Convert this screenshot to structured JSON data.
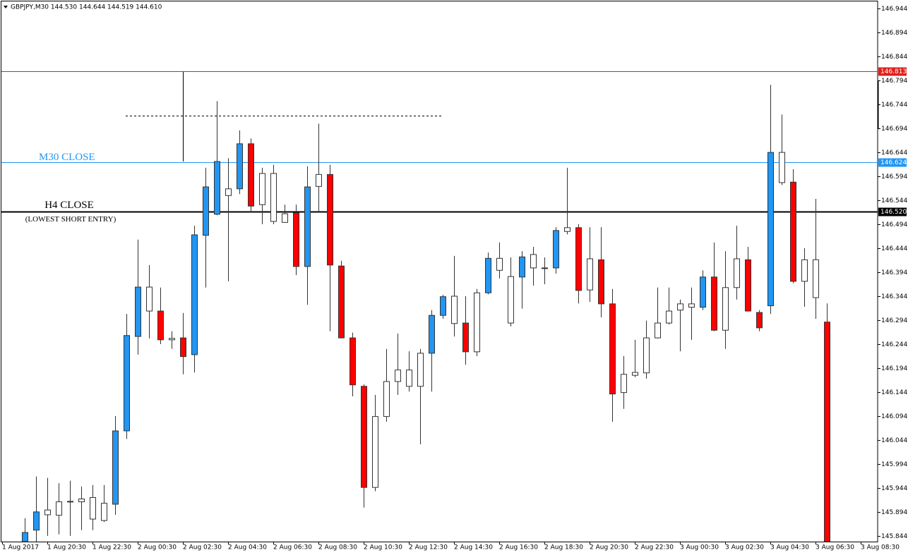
{
  "chart_data": {
    "type": "candlestick",
    "header": "GBPJPY,M30  144.530 144.644 144.519 144.610",
    "categories": [
      "1 Aug 2017",
      null,
      null,
      null,
      "1 Aug 20:30",
      null,
      null,
      null,
      "1 Aug 22:30",
      null,
      null,
      null,
      "2 Aug 00:30",
      null,
      null,
      null,
      "2 Aug 02:30",
      null,
      null,
      null,
      "2 Aug 04:30",
      null,
      null,
      null,
      "2 Aug 06:30",
      null,
      null,
      null,
      "2 Aug 08:30",
      null,
      null,
      null,
      "2 Aug 10:30",
      null,
      null,
      null,
      "2 Aug 12:30",
      null,
      null,
      null,
      "2 Aug 14:30",
      null,
      null,
      null,
      "2 Aug 16:30",
      null,
      null,
      null,
      "2 Aug 18:30",
      null,
      null,
      null,
      "2 Aug 20:30",
      null,
      null,
      null,
      "2 Aug 22:30",
      null,
      null,
      null,
      "3 Aug 00:30",
      null,
      null,
      null,
      "3 Aug 02:30",
      null,
      null,
      null,
      "3 Aug 04:30",
      null,
      null,
      null,
      "3 Aug 06:30",
      null,
      null,
      null,
      "3 Aug 08:30"
    ],
    "open": [
      null,
      null,
      145.832,
      145.856,
      145.888,
      145.887,
      145.916,
      145.915,
      145.924,
      145.876,
      145.91,
      146.063,
      146.26,
      146.363,
      146.313,
      146.253,
      146.257,
      146.222,
      146.471,
      146.515,
      146.554,
      146.568,
      146.662,
      146.535,
      146.6,
      146.498,
      146.518,
      146.406,
      146.573,
      146.598,
      146.407,
      146.257,
      146.156,
      145.945,
      146.093,
      146.166,
      146.19,
      146.156,
      146.225,
      146.304,
      146.344,
      146.288,
      146.228,
      146.351,
      146.398,
      146.385,
      146.384,
      146.431,
      146.403,
      146.403,
      146.479,
      146.487,
      146.357,
      146.42,
      146.328,
      146.143,
      146.179,
      146.184,
      146.257,
      146.288,
      146.315,
      146.321,
      146.321,
      146.384,
      146.273,
      146.362,
      146.42,
      146.31,
      146.324,
      146.644,
      146.582,
      146.375,
      146.42,
      146.29,
      null,
      null,
      null
    ],
    "high": [
      null,
      null,
      145.881,
      145.968,
      145.965,
      145.954,
      145.959,
      145.947,
      145.95,
      145.95,
      146.094,
      146.307,
      146.462,
      146.409,
      146.362,
      146.271,
      146.309,
      146.491,
      146.612,
      146.751,
      146.632,
      146.69,
      146.673,
      146.612,
      146.618,
      146.535,
      146.535,
      146.615,
      146.704,
      146.618,
      146.418,
      146.268,
      146.16,
      146.138,
      146.234,
      146.266,
      146.229,
      146.234,
      146.315,
      146.347,
      146.428,
      146.344,
      146.359,
      146.435,
      146.456,
      146.425,
      146.438,
      146.447,
      146.425,
      146.488,
      146.612,
      146.494,
      146.488,
      146.488,
      146.359,
      146.219,
      146.253,
      146.293,
      146.362,
      146.362,
      146.337,
      146.362,
      146.398,
      146.456,
      146.438,
      146.491,
      146.447,
      146.315,
      146.785,
      146.723,
      146.609,
      146.444,
      146.547,
      146.329,
      null,
      null,
      null
    ],
    "low": [
      null,
      null,
      145.832,
      145.832,
      145.844,
      145.847,
      145.844,
      145.856,
      145.856,
      145.873,
      145.888,
      146.046,
      146.222,
      146.256,
      146.244,
      146.234,
      146.181,
      146.185,
      146.362,
      146.513,
      146.375,
      146.557,
      146.52,
      146.494,
      146.494,
      146.497,
      146.388,
      146.326,
      146.52,
      146.271,
      146.256,
      146.135,
      145.903,
      145.937,
      146.082,
      146.138,
      146.145,
      146.035,
      146.145,
      146.297,
      146.26,
      146.201,
      146.219,
      146.348,
      146.381,
      146.281,
      146.318,
      146.366,
      146.369,
      146.391,
      146.473,
      146.329,
      146.332,
      146.3,
      146.082,
      146.109,
      146.175,
      146.172,
      146.256,
      146.285,
      146.229,
      146.253,
      146.315,
      146.271,
      146.234,
      146.337,
      146.312,
      146.271,
      146.307,
      146.576,
      146.371,
      146.322,
      146.297,
      145.832,
      null,
      null,
      null
    ],
    "close": [
      null,
      null,
      145.851,
      145.894,
      145.898,
      145.915,
      145.916,
      145.921,
      145.879,
      145.912,
      146.063,
      146.262,
      146.363,
      146.313,
      146.253,
      146.256,
      146.218,
      146.472,
      146.572,
      146.625,
      146.568,
      146.662,
      146.532,
      146.6,
      146.5,
      146.516,
      146.406,
      146.572,
      146.598,
      146.409,
      146.257,
      146.159,
      145.945,
      146.093,
      146.166,
      146.19,
      146.156,
      146.225,
      146.304,
      146.343,
      146.287,
      146.228,
      146.351,
      146.423,
      146.423,
      146.288,
      146.426,
      146.403,
      146.403,
      146.481,
      146.487,
      146.356,
      146.422,
      146.328,
      146.14,
      146.181,
      146.185,
      146.257,
      146.288,
      146.313,
      146.328,
      146.328,
      146.384,
      146.273,
      146.362,
      146.422,
      146.313,
      146.278,
      146.644,
      146.581,
      146.375,
      146.42,
      146.341,
      145.832,
      null,
      null,
      null
    ],
    "colors": [
      null,
      null,
      "#2196f3",
      "#2196f3",
      "#ffffff",
      "#ffffff",
      "#ffffff",
      "#ffffff",
      "#ffffff",
      "#ffffff",
      "#2196f3",
      "#2196f3",
      "#2196f3",
      "#ffffff",
      "#ff0000",
      "#ffffff",
      "#ff0000",
      "#2196f3",
      "#2196f3",
      "#2196f3",
      "#ffffff",
      "#2196f3",
      "#ff0000",
      "#ffffff",
      "#ffffff",
      "#ffffff",
      "#ff0000",
      "#2196f3",
      "#ffffff",
      "#ff0000",
      "#ff0000",
      "#ff0000",
      "#ff0000",
      "#ffffff",
      "#ffffff",
      "#ffffff",
      "#ffffff",
      "#ffffff",
      "#2196f3",
      "#2196f3",
      "#ffffff",
      "#ff0000",
      "#ffffff",
      "#2196f3",
      "#ffffff",
      "#ffffff",
      "#2196f3",
      "#ffffff",
      "#ffffff",
      "#2196f3",
      "#ffffff",
      "#ff0000",
      "#ffffff",
      "#ff0000",
      "#ff0000",
      "#ffffff",
      "#ffffff",
      "#ffffff",
      "#ffffff",
      "#ffffff",
      "#ffffff",
      "#ffffff",
      "#2196f3",
      "#ff0000",
      "#ffffff",
      "#ffffff",
      "#ff0000",
      "#ff0000",
      "#2196f3",
      "#ffffff",
      "#ff0000",
      "#ffffff",
      "#ffffff",
      "#ff0000",
      null,
      null,
      null
    ],
    "ylim": [
      145.832,
      146.959
    ],
    "yticks": [
      146.944,
      146.894,
      146.844,
      146.794,
      146.744,
      146.694,
      146.644,
      146.594,
      146.544,
      146.494,
      146.444,
      146.394,
      146.344,
      146.294,
      146.244,
      146.194,
      146.144,
      146.094,
      146.044,
      145.994,
      145.944,
      145.894,
      145.844
    ],
    "hlines": [
      {
        "value": 146.813,
        "label": "146.813",
        "color": "#e0201c"
      },
      {
        "value": 146.624,
        "label": "146.624",
        "color": "#2196f3",
        "text": "M30 CLOSE"
      },
      {
        "value": 146.52,
        "label": "146.520",
        "color": "#000000",
        "text": "H4 CLOSE",
        "subtext": "(LOWEST SHORT ENTRY)"
      }
    ]
  }
}
